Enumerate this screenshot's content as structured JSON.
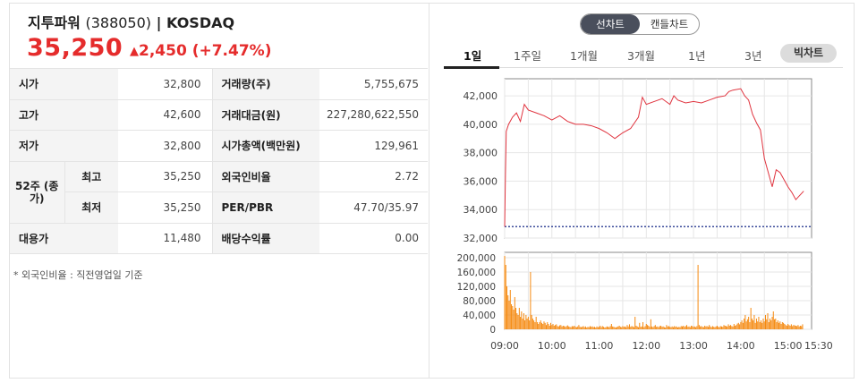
{
  "stock": {
    "name": "지투파워",
    "code": "(388050)",
    "sep": " | ",
    "market": "KOSDAQ",
    "price": "35,250",
    "change_symbol": "▲",
    "change": "2,450",
    "change_pct": "(+7.47%)",
    "up_color": "#e52c2c"
  },
  "info_table": {
    "open_label": "시가",
    "open": "32,800",
    "high_label": "고가",
    "high": "42,600",
    "low_label": "저가",
    "low": "32,800",
    "week52_label": "52주 (종가)",
    "week52_high_label": "최고",
    "week52_high": "35,250",
    "week52_low_label": "최저",
    "week52_low": "35,250",
    "substitute_label": "대용가",
    "substitute": "11,480",
    "volume_label": "거래량(주)",
    "volume": "5,755,675",
    "amount_label": "거래대금(원)",
    "amount": "227,280,622,550",
    "market_cap_label": "시가총액(백만원)",
    "market_cap": "129,961",
    "foreign_label": "외국인비율",
    "foreign": "2.72",
    "per_pbr_label": "PER/PBR",
    "per_pbr": "47.70/35.97",
    "dividend_label": "배당수익률",
    "dividend": "0.00"
  },
  "note": "* 외국인비율 : 직전영업일 기준",
  "chart_toggle": {
    "line": "선차트",
    "candle": "캔들차트",
    "selected": "선차트"
  },
  "periods": [
    "1일",
    "1주일",
    "1개월",
    "3개월",
    "1년",
    "3년"
  ],
  "active_period": "1일",
  "big_chart_label": "빅차트",
  "chart_data": [
    {
      "type": "line",
      "title": "",
      "y_ticks": [
        "42,000",
        "40,000",
        "38,000",
        "36,000",
        "34,000",
        "32,000"
      ],
      "ylim": [
        32000,
        43200
      ],
      "prev_close": 32800,
      "line_color": "#e0343f",
      "grid": true,
      "series": [
        {
          "x": [
            "09:00",
            "09:01",
            "09:02",
            "09:05",
            "09:10",
            "09:15",
            "09:20",
            "09:25",
            "09:30",
            "09:40",
            "09:50",
            "10:00",
            "10:10",
            "10:20",
            "10:30",
            "10:40",
            "10:50",
            "11:00",
            "11:10",
            "11:20",
            "11:25",
            "11:30",
            "11:40",
            "11:50",
            "11:55",
            "12:00",
            "12:10",
            "12:20",
            "12:30",
            "12:35",
            "12:40",
            "12:50",
            "13:00",
            "13:10",
            "13:20",
            "13:30",
            "13:40",
            "13:45",
            "13:50",
            "14:00",
            "14:05",
            "14:10",
            "14:15",
            "14:20",
            "14:25",
            "14:30",
            "14:40",
            "14:45",
            "14:50",
            "15:00",
            "15:05",
            "15:10",
            "15:20"
          ],
          "values": [
            32800,
            36500,
            39500,
            40000,
            40500,
            40800,
            40200,
            41400,
            41000,
            40800,
            40600,
            40300,
            40600,
            40200,
            40000,
            40000,
            39900,
            39700,
            39400,
            39000,
            39200,
            39400,
            39700,
            40500,
            41900,
            41400,
            41600,
            41800,
            41400,
            42000,
            41700,
            41500,
            41600,
            41500,
            41700,
            41900,
            42000,
            42300,
            42400,
            42500,
            42000,
            41700,
            40700,
            40100,
            39600,
            37600,
            35600,
            36800,
            36600,
            35600,
            35200,
            34700,
            35300
          ]
        }
      ]
    },
    {
      "type": "bar",
      "title": "",
      "y_ticks": [
        "200,000",
        "160,000",
        "120,000",
        "80,000",
        "40,000",
        "0"
      ],
      "ylim": [
        0,
        215000
      ],
      "bar_color": "#f5890f",
      "x_ticks": [
        "09:00",
        "10:00",
        "11:00",
        "12:00",
        "13:00",
        "14:00",
        "15:00",
        "15:30"
      ],
      "series": [
        {
          "values": [
            205000,
            180000,
            120000,
            95000,
            80000,
            110000,
            70000,
            65000,
            55000,
            90000,
            60000,
            45000,
            40000,
            60000,
            35000,
            50000,
            30000,
            45000,
            25000,
            40000,
            30000,
            35000,
            25000,
            160000,
            40000,
            30000,
            25000,
            20000,
            35000,
            20000,
            15000,
            20000,
            25000,
            18000,
            15000,
            22000,
            18000,
            12000,
            20000,
            15000,
            10000,
            18000,
            12000,
            15000,
            10000,
            12000,
            14000,
            9000,
            8000,
            11000,
            12000,
            8000,
            10000,
            9000,
            7000,
            9000,
            11000,
            8000,
            7000,
            6000,
            9000,
            8000,
            10000,
            7000,
            6000,
            8000,
            12000,
            7000,
            6000,
            7000,
            9000,
            6000,
            8000,
            5000,
            7000,
            6000,
            9000,
            7000,
            8000,
            6000,
            7000,
            5000,
            8000,
            6000,
            7000,
            10000,
            6000,
            9000,
            7000,
            5000,
            6000,
            8000,
            7000,
            6000,
            9000,
            15000,
            8000,
            7000,
            6000,
            5000,
            7000,
            8000,
            10000,
            7000,
            6000,
            9000,
            7000,
            8000,
            6000,
            12000,
            8000,
            14000,
            7000,
            9000,
            8000,
            6000,
            35000,
            10000,
            8000,
            6000,
            18000,
            7000,
            8000,
            20000,
            6000,
            9000,
            15000,
            12000,
            10000,
            7000,
            28000,
            8000,
            6000,
            9000,
            12000,
            7000,
            8000,
            6000,
            9000,
            10000,
            7000,
            8000,
            6000,
            5000,
            12000,
            8000,
            9000,
            7000,
            6000,
            8000,
            6000,
            9000,
            7000,
            8000,
            5000,
            7000,
            6000,
            9000,
            8000,
            10000,
            7000,
            9000,
            12000,
            7000,
            8000,
            6000,
            10000,
            9000,
            7000,
            8000,
            6000,
            9000,
            180000,
            12000,
            8000,
            9000,
            7000,
            6000,
            10000,
            8000,
            9000,
            7000,
            12000,
            8000,
            6000,
            9000,
            7000,
            6000,
            8000,
            10000,
            7000,
            6000,
            9000,
            8000,
            7000,
            12000,
            10000,
            9000,
            8000,
            14000,
            10000,
            12000,
            9000,
            8000,
            15000,
            10000,
            12000,
            16000,
            18000,
            14000,
            20000,
            25000,
            18000,
            30000,
            40000,
            22000,
            28000,
            35000,
            20000,
            60000,
            30000,
            25000,
            40000,
            18000,
            30000,
            22000,
            35000,
            20000,
            25000,
            18000,
            30000,
            22000,
            40000,
            28000,
            45000,
            20000,
            30000,
            25000,
            35000,
            50000,
            28000,
            30000,
            20000,
            25000,
            18000,
            22000,
            15000,
            20000,
            18000,
            15000,
            12000,
            10000,
            15000,
            12000,
            10000,
            14000,
            9000,
            12000,
            11000,
            10000,
            9000,
            12000,
            8000,
            10000,
            9000,
            14000
          ]
        }
      ]
    }
  ]
}
